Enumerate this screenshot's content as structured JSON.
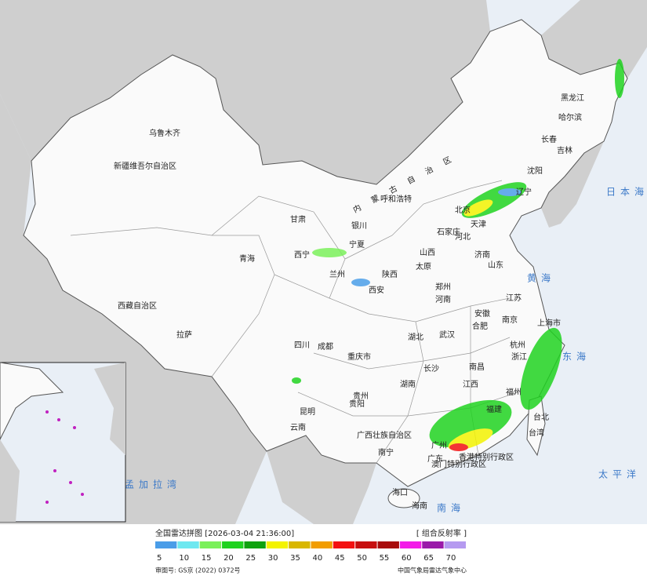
{
  "map": {
    "labels": [
      "黑龙江",
      "哈尔滨",
      "吉林",
      "长春",
      "辽宁",
      "沈阳",
      "内蒙古自治区",
      "呼和浩特",
      "北京",
      "天津",
      "河北",
      "石家庄",
      "山西",
      "太原",
      "山东",
      "济南",
      "宁夏",
      "银川",
      "甘肃",
      "兰州",
      "陕西",
      "西安",
      "河南",
      "郑州",
      "江苏",
      "南京",
      "安徽",
      "合肥",
      "上海市",
      "浙江",
      "杭州",
      "湖北",
      "武汉",
      "重庆市",
      "四川",
      "成都",
      "湖南",
      "长沙",
      "江西",
      "南昌",
      "福建",
      "福州",
      "台北",
      "台湾",
      "贵州",
      "贵阳",
      "云南",
      "昆明",
      "广西壮族自治区",
      "南宁",
      "广东",
      "广州",
      "香港特别行政区",
      "澳门特别行政区",
      "海口",
      "海南",
      "青海",
      "西宁",
      "西藏自治区",
      "拉萨",
      "新疆维吾尔自治区",
      "乌鲁木齐"
    ],
    "seas": [
      "日本海",
      "黄海",
      "东海",
      "南海",
      "太平洋",
      "孟加拉湾"
    ]
  },
  "legend": {
    "title": "全国雷达拼图 [2026-03-04 21:36:00]",
    "product": "[ 组合反射率 ]",
    "scale": [
      5,
      10,
      15,
      20,
      25,
      30,
      35,
      40,
      45,
      50,
      55,
      60,
      65,
      70
    ],
    "colors": [
      "#4a9de8",
      "#6ee8f0",
      "#7af05a",
      "#1fd21f",
      "#0ea20e",
      "#f3f300",
      "#d9b700",
      "#f29d00",
      "#f31111",
      "#c70f0f",
      "#a80b0b",
      "#f31ce8",
      "#9a1aa9",
      "#b59af0"
    ]
  },
  "footer": {
    "approval": "审图号: GS京 (2022) 0372号",
    "agency": "中国气象局雷达气象中心"
  }
}
